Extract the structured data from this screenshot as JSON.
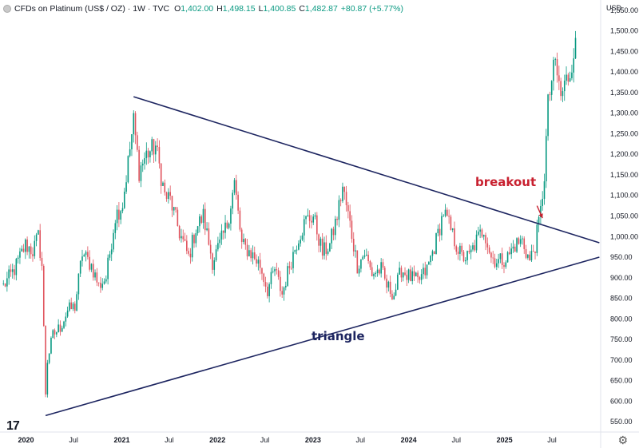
{
  "header": {
    "title": "CFDs on Platinum (US$ / OZ) · 1W · TVC",
    "open_label": "O",
    "open": "1,402.00",
    "high_label": "H",
    "high": "1,498.15",
    "low_label": "L",
    "low": "1,400.85",
    "close_label": "C",
    "close": "1,482.87",
    "change": "+80.87 (+5.77%)",
    "currency": "USD"
  },
  "annotations": {
    "triangle": "triangle",
    "breakout": "breakout"
  },
  "colors": {
    "up": "#089981",
    "down": "#e0525c",
    "trendline": "#1d2560",
    "breakout": "#c8202f"
  },
  "chart_data": {
    "type": "candlestick",
    "ylim": [
      525,
      1575
    ],
    "y_ticks": [
      "1,550.00",
      "1,500.00",
      "1,450.00",
      "1,400.00",
      "1,350.00",
      "1,300.00",
      "1,250.00",
      "1,200.00",
      "1,150.00",
      "1,100.00",
      "1,050.00",
      "1,000.00",
      "950.00",
      "900.00",
      "850.00",
      "800.00",
      "750.00",
      "700.00",
      "650.00",
      "600.00",
      "550.00"
    ],
    "x_ticks": [
      "2020",
      "Jul",
      "2021",
      "Jul",
      "2022",
      "Jul",
      "2023",
      "Jul",
      "2024",
      "Jul",
      "2025",
      "Jul"
    ],
    "close_path": [
      [
        "2019-10-07",
        880
      ],
      [
        "2019-11-18",
        920
      ],
      [
        "2019-12-30",
        980
      ],
      [
        "2020-01-27",
        965
      ],
      [
        "2020-02-17",
        1000
      ],
      [
        "2020-03-02",
        930
      ],
      [
        "2020-03-16",
        620
      ],
      [
        "2020-03-23",
        700
      ],
      [
        "2020-04-13",
        760
      ],
      [
        "2020-05-11",
        780
      ],
      [
        "2020-06-08",
        820
      ],
      [
        "2020-07-06",
        830
      ],
      [
        "2020-08-03",
        960
      ],
      [
        "2020-09-07",
        930
      ],
      [
        "2020-10-05",
        880
      ],
      [
        "2020-11-02",
        900
      ],
      [
        "2020-12-07",
        1050
      ],
      [
        "2021-01-04",
        1080
      ],
      [
        "2021-02-15",
        1280
      ],
      [
        "2021-03-08",
        1160
      ],
      [
        "2021-04-05",
        1200
      ],
      [
        "2021-05-10",
        1220
      ],
      [
        "2021-06-14",
        1100
      ],
      [
        "2021-07-05",
        1090
      ],
      [
        "2021-08-09",
        1010
      ],
      [
        "2021-09-13",
        950
      ],
      [
        "2021-10-11",
        1020
      ],
      [
        "2021-11-08",
        1050
      ],
      [
        "2021-12-13",
        940
      ],
      [
        "2022-01-10",
        980
      ],
      [
        "2022-02-07",
        1030
      ],
      [
        "2022-03-07",
        1130
      ],
      [
        "2022-04-04",
        980
      ],
      [
        "2022-05-09",
        960
      ],
      [
        "2022-06-13",
        930
      ],
      [
        "2022-07-11",
        870
      ],
      [
        "2022-08-08",
        920
      ],
      [
        "2022-09-05",
        860
      ],
      [
        "2022-10-03",
        930
      ],
      [
        "2022-11-07",
        1000
      ],
      [
        "2022-12-05",
        1040
      ],
      [
        "2023-01-02",
        1050
      ],
      [
        "2023-02-06",
        960
      ],
      [
        "2023-03-06",
        980
      ],
      [
        "2023-04-03",
        1050
      ],
      [
        "2023-04-24",
        1120
      ],
      [
        "2023-05-22",
        1030
      ],
      [
        "2023-06-19",
        930
      ],
      [
        "2023-07-17",
        960
      ],
      [
        "2023-08-14",
        910
      ],
      [
        "2023-09-18",
        920
      ],
      [
        "2023-10-09",
        880
      ],
      [
        "2023-11-06",
        860
      ],
      [
        "2023-12-04",
        920
      ],
      [
        "2024-01-08",
        900
      ],
      [
        "2024-02-05",
        890
      ],
      [
        "2024-03-11",
        920
      ],
      [
        "2024-04-15",
        990
      ],
      [
        "2024-05-13",
        1060
      ],
      [
        "2024-05-27",
        1040
      ],
      [
        "2024-06-24",
        990
      ],
      [
        "2024-07-22",
        950
      ],
      [
        "2024-08-19",
        950
      ],
      [
        "2024-09-16",
        990
      ],
      [
        "2024-10-14",
        1020
      ],
      [
        "2024-11-11",
        950
      ],
      [
        "2024-12-09",
        940
      ],
      [
        "2025-01-13",
        950
      ],
      [
        "2025-02-10",
        980
      ],
      [
        "2025-03-10",
        990
      ],
      [
        "2025-04-07",
        940
      ],
      [
        "2025-04-28",
        980
      ],
      [
        "2025-05-19",
        1060
      ],
      [
        "2025-06-02",
        1150
      ],
      [
        "2025-06-16",
        1320
      ],
      [
        "2025-06-30",
        1380
      ],
      [
        "2025-07-14",
        1420
      ],
      [
        "2025-08-04",
        1340
      ],
      [
        "2025-08-25",
        1380
      ],
      [
        "2025-09-08",
        1400
      ],
      [
        "2025-09-29",
        1482.87
      ]
    ],
    "trendlines": [
      {
        "label": "triangle upper",
        "from": [
          "2021-02-15",
          1340
        ],
        "to": [
          "2025-12-29",
          985
        ]
      },
      {
        "label": "triangle lower",
        "from": [
          "2020-03-16",
          565
        ],
        "to": [
          "2025-12-29",
          950
        ]
      }
    ],
    "breakout_arrow": {
      "from": [
        "2025-05-05",
        1075
      ],
      "to": [
        "2025-05-26",
        1045
      ]
    }
  }
}
